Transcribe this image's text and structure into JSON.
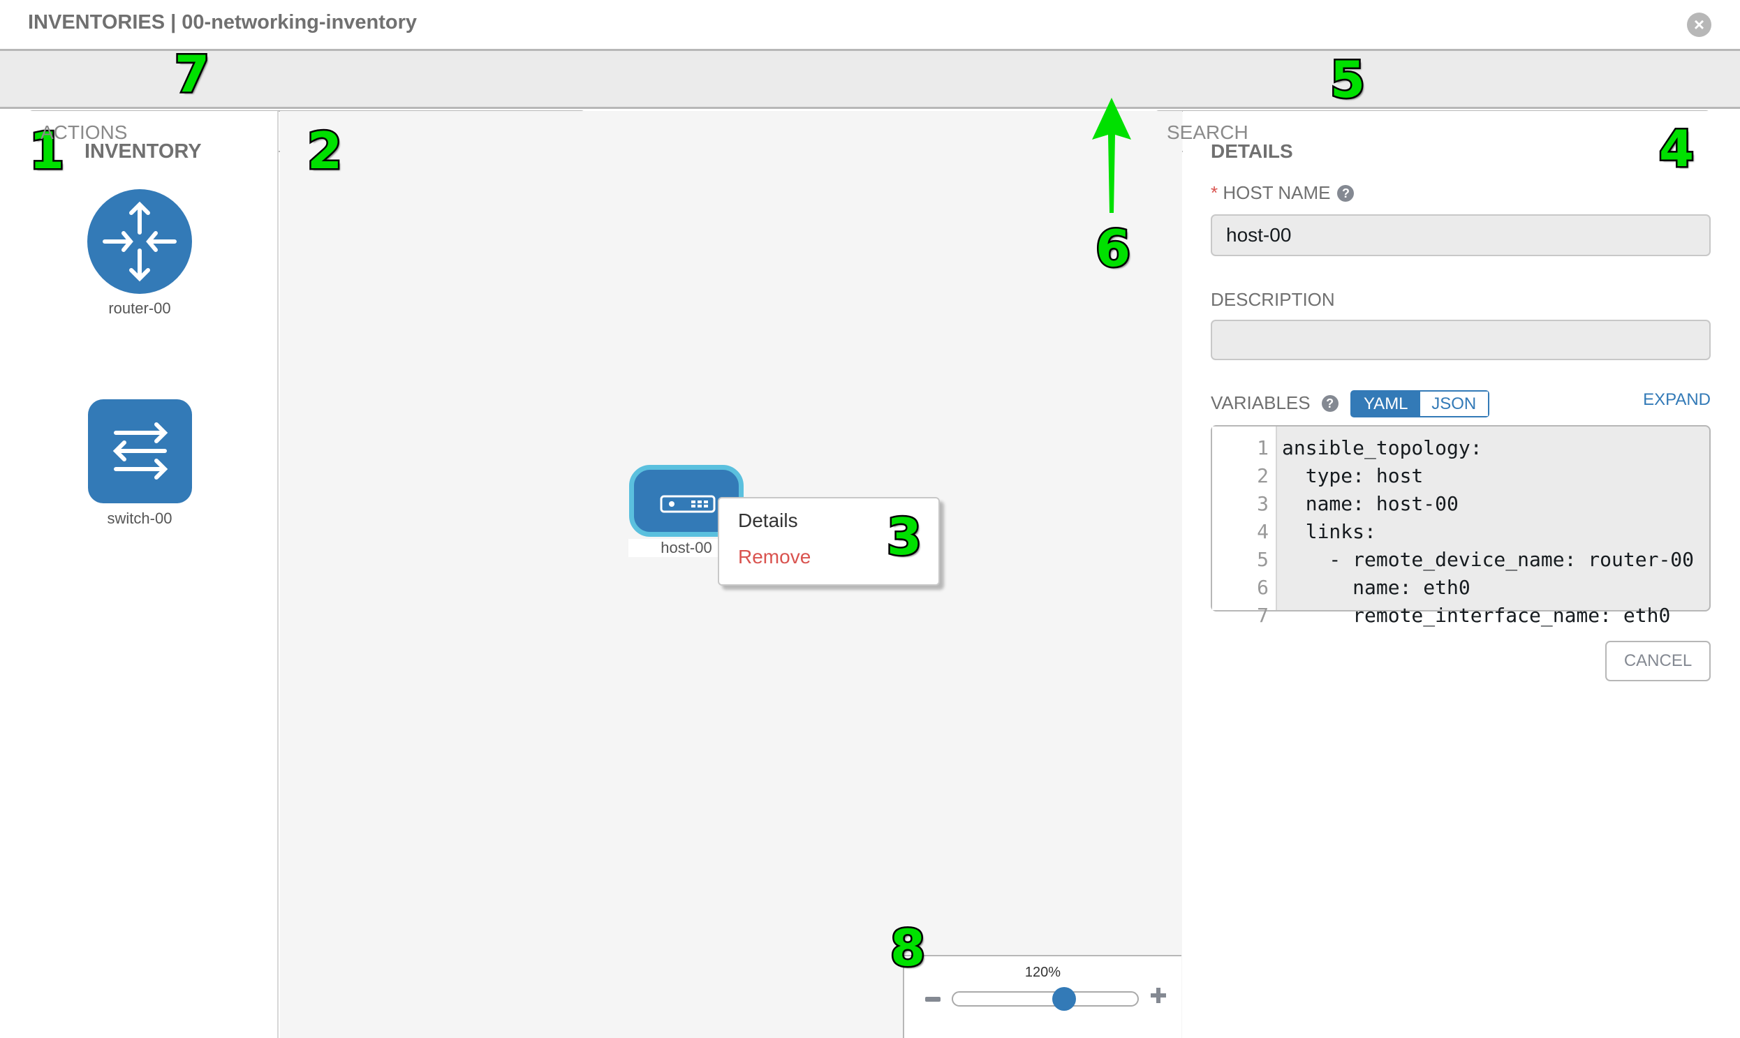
{
  "header": {
    "title": "INVENTORIES | 00-networking-inventory",
    "close_icon": "close-circle-icon"
  },
  "toolbar": {
    "actions_placeholder": "ACTIONS",
    "search_placeholder": "SEARCH",
    "tools": [
      {
        "icon": "wrench-icon",
        "active": true
      },
      {
        "icon": "key-icon",
        "active": false
      }
    ]
  },
  "inventory": {
    "title": "INVENTORY",
    "items": [
      {
        "label": "router-00",
        "icon": "router-icon"
      },
      {
        "label": "switch-00",
        "icon": "switch-icon"
      }
    ]
  },
  "canvas": {
    "host": {
      "label": "host-00",
      "icon": "server-icon"
    },
    "context_menu": {
      "details": "Details",
      "remove": "Remove"
    },
    "zoom": {
      "label": "120%",
      "value_percent": 120,
      "slider_fraction": 0.6
    }
  },
  "details": {
    "title": "DETAILS",
    "required_mark": "*",
    "host_name_label": "HOST NAME",
    "host_name_value": "host-00",
    "description_label": "DESCRIPTION",
    "description_value": "",
    "variables_label": "VARIABLES",
    "format_yaml": "YAML",
    "format_json": "JSON",
    "expand": "EXPAND",
    "code_lines": [
      {
        "n": "1",
        "text": "ansible_topology:"
      },
      {
        "n": "2",
        "text": "  type: host"
      },
      {
        "n": "3",
        "text": "  name: host-00"
      },
      {
        "n": "4",
        "text": "  links:"
      },
      {
        "n": "5",
        "text": "    - remote_device_name: router-00"
      },
      {
        "n": "6",
        "text": "      name: eth0"
      },
      {
        "n": "7",
        "text": "      remote_interface_name: eth0"
      }
    ],
    "cancel": "CANCEL"
  },
  "annotations": [
    "1",
    "2",
    "3",
    "4",
    "5",
    "6",
    "7",
    "8"
  ],
  "colors": {
    "primary": "#337ab7",
    "host_border": "#5bc0de",
    "danger": "#d9534f",
    "annotation": "#00e000"
  }
}
